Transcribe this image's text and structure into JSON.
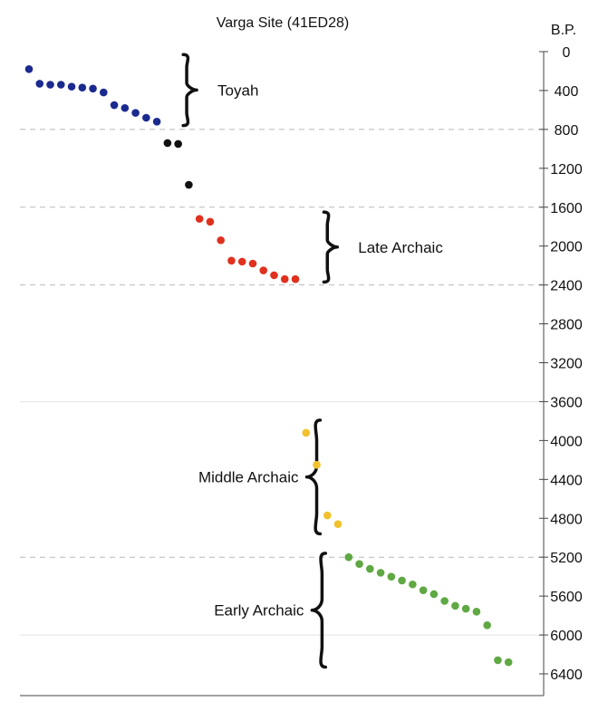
{
  "chart_data": {
    "type": "scatter",
    "title": "Varga Site (41ED28)",
    "ylabel": "B.P.",
    "y_axis": {
      "reversed": true,
      "min": 0,
      "max": 6400,
      "ticks": [
        0,
        400,
        800,
        1200,
        1600,
        2000,
        2400,
        2800,
        3200,
        3600,
        4000,
        4400,
        4800,
        5200,
        5600,
        6000,
        6400
      ],
      "position": "right"
    },
    "grid": {
      "horizontal_dashed": [
        800,
        1600,
        2400,
        5200
      ],
      "faint": [
        3600,
        6000
      ]
    },
    "series": [
      {
        "color": "#1b2a8f",
        "points": [
          {
            "x": 1,
            "y": 180
          },
          {
            "x": 2,
            "y": 330
          },
          {
            "x": 3,
            "y": 340
          },
          {
            "x": 4,
            "y": 340
          },
          {
            "x": 5,
            "y": 360
          },
          {
            "x": 6,
            "y": 370
          },
          {
            "x": 7,
            "y": 380
          },
          {
            "x": 8,
            "y": 420
          },
          {
            "x": 9,
            "y": 550
          },
          {
            "x": 10,
            "y": 580
          },
          {
            "x": 11,
            "y": 630
          },
          {
            "x": 12,
            "y": 680
          },
          {
            "x": 13,
            "y": 720
          }
        ]
      },
      {
        "color": "#111111",
        "points": [
          {
            "x": 14,
            "y": 940
          },
          {
            "x": 15,
            "y": 950
          },
          {
            "x": 16,
            "y": 1370
          }
        ]
      },
      {
        "color": "#e0301e",
        "points": [
          {
            "x": 17,
            "y": 1720
          },
          {
            "x": 18,
            "y": 1750
          },
          {
            "x": 19,
            "y": 1940
          },
          {
            "x": 20,
            "y": 2150
          },
          {
            "x": 21,
            "y": 2160
          },
          {
            "x": 22,
            "y": 2180
          },
          {
            "x": 23,
            "y": 2250
          },
          {
            "x": 24,
            "y": 2300
          },
          {
            "x": 25,
            "y": 2340
          },
          {
            "x": 26,
            "y": 2340
          }
        ]
      },
      {
        "color": "#f2c12e",
        "points": [
          {
            "x": 27,
            "y": 3920
          },
          {
            "x": 28,
            "y": 4250
          },
          {
            "x": 29,
            "y": 4770
          },
          {
            "x": 30,
            "y": 4860
          }
        ]
      },
      {
        "color": "#5fa843",
        "points": [
          {
            "x": 31,
            "y": 5200
          },
          {
            "x": 32,
            "y": 5270
          },
          {
            "x": 33,
            "y": 5320
          },
          {
            "x": 34,
            "y": 5360
          },
          {
            "x": 35,
            "y": 5400
          },
          {
            "x": 36,
            "y": 5440
          },
          {
            "x": 37,
            "y": 5480
          },
          {
            "x": 38,
            "y": 5540
          },
          {
            "x": 39,
            "y": 5580
          },
          {
            "x": 40,
            "y": 5650
          },
          {
            "x": 41,
            "y": 5700
          },
          {
            "x": 42,
            "y": 5730
          },
          {
            "x": 43,
            "y": 5760
          },
          {
            "x": 44,
            "y": 5900
          },
          {
            "x": 45,
            "y": 6260
          },
          {
            "x": 46,
            "y": 6280
          }
        ]
      }
    ],
    "annotations": [
      {
        "text": "Toyah",
        "y_top": 30,
        "y_bottom": 760,
        "brace_x": 15.8,
        "label_side": "right"
      },
      {
        "text": "Late Archaic",
        "y_top": 1650,
        "y_bottom": 2370,
        "brace_x": 29,
        "label_side": "right"
      },
      {
        "text": "Middle Archaic",
        "y_top": 3790,
        "y_bottom": 4960,
        "brace_x": 28,
        "label_side": "left"
      },
      {
        "text": "Early Archaic",
        "y_top": 5160,
        "y_bottom": 6330,
        "brace_x": 28.5,
        "label_side": "left"
      }
    ]
  }
}
